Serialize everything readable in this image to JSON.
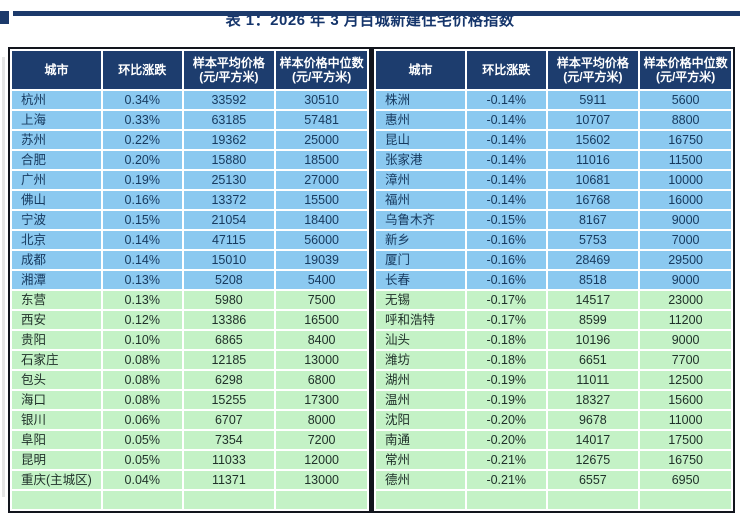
{
  "page": {
    "title": "表 1：2026 年 3 月百城新建住宅价格指数"
  },
  "table": {
    "headers": {
      "city": "城市",
      "mom_change": "环比涨跌",
      "avg_price_line1": "样本平均价格",
      "avg_price_line2": "(元/平方米)",
      "median_price_line1": "样本价格中位数",
      "median_price_line2": "(元/平方米)"
    },
    "green_start_index": 10,
    "left_rows": [
      {
        "city": "杭州",
        "change": "0.34%",
        "avg": "33592",
        "median": "30510"
      },
      {
        "city": "上海",
        "change": "0.33%",
        "avg": "63185",
        "median": "57481"
      },
      {
        "city": "苏州",
        "change": "0.22%",
        "avg": "19362",
        "median": "25000"
      },
      {
        "city": "合肥",
        "change": "0.20%",
        "avg": "15880",
        "median": "18500"
      },
      {
        "city": "广州",
        "change": "0.19%",
        "avg": "25130",
        "median": "27000"
      },
      {
        "city": "佛山",
        "change": "0.16%",
        "avg": "13372",
        "median": "15500"
      },
      {
        "city": "宁波",
        "change": "0.15%",
        "avg": "21054",
        "median": "18400"
      },
      {
        "city": "北京",
        "change": "0.14%",
        "avg": "47115",
        "median": "56000"
      },
      {
        "city": "成都",
        "change": "0.14%",
        "avg": "15010",
        "median": "19039"
      },
      {
        "city": "湘潭",
        "change": "0.13%",
        "avg": "5208",
        "median": "5400"
      },
      {
        "city": "东营",
        "change": "0.13%",
        "avg": "5980",
        "median": "7500"
      },
      {
        "city": "西安",
        "change": "0.12%",
        "avg": "13386",
        "median": "16500"
      },
      {
        "city": "贵阳",
        "change": "0.10%",
        "avg": "6865",
        "median": "8400"
      },
      {
        "city": "石家庄",
        "change": "0.08%",
        "avg": "12185",
        "median": "13000"
      },
      {
        "city": "包头",
        "change": "0.08%",
        "avg": "6298",
        "median": "6800"
      },
      {
        "city": "海口",
        "change": "0.08%",
        "avg": "15255",
        "median": "17300"
      },
      {
        "city": "银川",
        "change": "0.06%",
        "avg": "6707",
        "median": "8000"
      },
      {
        "city": "阜阳",
        "change": "0.05%",
        "avg": "7354",
        "median": "7200"
      },
      {
        "city": "昆明",
        "change": "0.05%",
        "avg": "11033",
        "median": "12000"
      },
      {
        "city": "重庆(主城区)",
        "change": "0.04%",
        "avg": "11371",
        "median": "13000"
      }
    ],
    "right_rows": [
      {
        "city": "株洲",
        "change": "-0.14%",
        "avg": "5911",
        "median": "5600"
      },
      {
        "city": "惠州",
        "change": "-0.14%",
        "avg": "10707",
        "median": "8800"
      },
      {
        "city": "昆山",
        "change": "-0.14%",
        "avg": "15602",
        "median": "16750"
      },
      {
        "city": "张家港",
        "change": "-0.14%",
        "avg": "11016",
        "median": "11500"
      },
      {
        "city": "漳州",
        "change": "-0.14%",
        "avg": "10681",
        "median": "10000"
      },
      {
        "city": "福州",
        "change": "-0.14%",
        "avg": "16768",
        "median": "16000"
      },
      {
        "city": "乌鲁木齐",
        "change": "-0.15%",
        "avg": "8167",
        "median": "9000"
      },
      {
        "city": "新乡",
        "change": "-0.16%",
        "avg": "5753",
        "median": "7000"
      },
      {
        "city": "厦门",
        "change": "-0.16%",
        "avg": "28469",
        "median": "29500"
      },
      {
        "city": "长春",
        "change": "-0.16%",
        "avg": "8518",
        "median": "9000"
      },
      {
        "city": "无锡",
        "change": "-0.17%",
        "avg": "14517",
        "median": "23000"
      },
      {
        "city": "呼和浩特",
        "change": "-0.17%",
        "avg": "8599",
        "median": "11200"
      },
      {
        "city": "汕头",
        "change": "-0.18%",
        "avg": "10196",
        "median": "9000"
      },
      {
        "city": "潍坊",
        "change": "-0.18%",
        "avg": "6651",
        "median": "7700"
      },
      {
        "city": "湖州",
        "change": "-0.19%",
        "avg": "11011",
        "median": "12500"
      },
      {
        "city": "温州",
        "change": "-0.19%",
        "avg": "18327",
        "median": "15600"
      },
      {
        "city": "沈阳",
        "change": "-0.20%",
        "avg": "9678",
        "median": "11000"
      },
      {
        "city": "南通",
        "change": "-0.20%",
        "avg": "14017",
        "median": "17500"
      },
      {
        "city": "常州",
        "change": "-0.21%",
        "avg": "12675",
        "median": "16750"
      },
      {
        "city": "德州",
        "change": "-0.21%",
        "avg": "6557",
        "median": "6950"
      }
    ]
  },
  "colors": {
    "header_bg": "#1d3d6e",
    "row_blue": "#8bc9f0",
    "row_green": "#c4f2c6",
    "border_dark": "#12151d",
    "title_color": "#15356b",
    "text_blue_row": "#16395e",
    "text_green_row": "#20312a",
    "header_text": "#ffffff",
    "top_bar": "#1c3a6b"
  }
}
